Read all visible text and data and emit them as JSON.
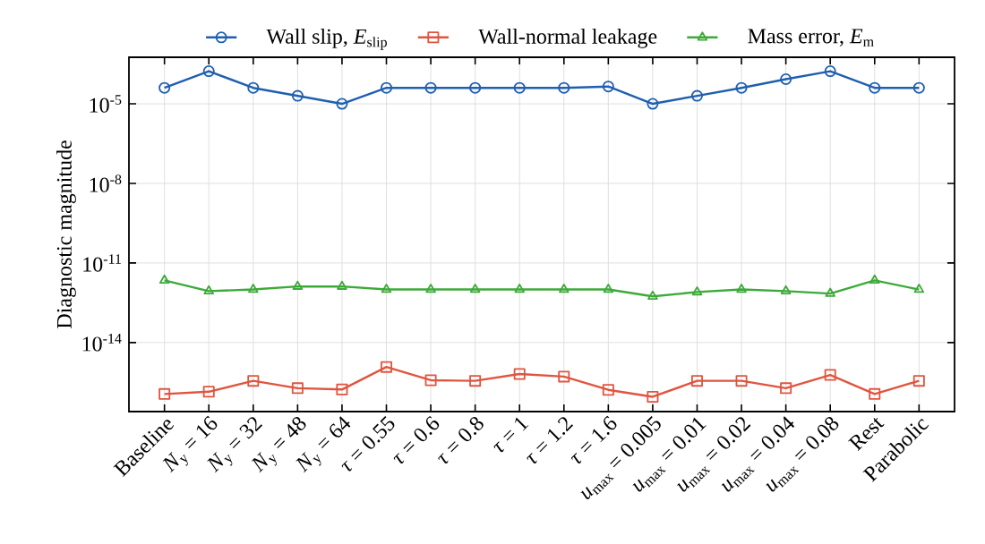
{
  "chart_data": {
    "type": "line",
    "ylabel": "Diagnostic magnitude",
    "categories": [
      "Baseline",
      "*N*$_{y}$ = 16",
      "*N*$_{y}$ = 32",
      "*N*$_{y}$ = 48",
      "*N*$_{y}$ = 64",
      "*τ* = 0.55",
      "*τ* = 0.6",
      "*τ* = 0.8",
      "*τ* = 1",
      "*τ* = 1.2",
      "*τ* = 1.6",
      "*u*$_{max}$ = 0.005",
      "*u*$_{max}$ = 0.01",
      "*u*$_{max}$ = 0.02",
      "*u*$_{max}$ = 0.04",
      "*u*$_{max}$ = 0.08",
      "Rest",
      "Parabolic"
    ],
    "series": [
      {
        "name": "Wall slip, *E*$_{slip}$",
        "color": "#1f5fb0",
        "marker": "circle",
        "values": [
          4e-05,
          0.00017,
          4e-05,
          2e-05,
          1e-05,
          4e-05,
          4e-05,
          4e-05,
          4e-05,
          4e-05,
          4.5e-05,
          1e-05,
          2e-05,
          4e-05,
          8.5e-05,
          0.00017,
          4e-05,
          4e-05
        ]
      },
      {
        "name": "Wall-normal leakage",
        "color": "#e0553f",
        "marker": "square",
        "values": [
          1.15e-16,
          1.4e-16,
          3.6e-16,
          1.9e-16,
          1.7e-16,
          1.2e-15,
          3.8e-16,
          3.6e-16,
          6.5e-16,
          5.2e-16,
          1.65e-16,
          9e-17,
          3.6e-16,
          3.6e-16,
          1.9e-16,
          6e-16,
          1.15e-16,
          3.6e-16
        ]
      },
      {
        "name": "Mass error, *E*$_{m}$",
        "color": "#3caa38",
        "marker": "triangle",
        "values": [
          2.2e-12,
          8.7e-13,
          1e-12,
          1.3e-12,
          1.3e-12,
          1e-12,
          1e-12,
          1e-12,
          1e-12,
          1e-12,
          1e-12,
          5.5e-13,
          8e-13,
          1e-12,
          8.7e-13,
          7e-13,
          2.2e-12,
          1e-12
        ]
      }
    ],
    "log": "y",
    "ylim": [
      2.5e-17,
      0.00057
    ],
    "yticks": [
      {
        "value": 1e-14,
        "label": "10$^{-14}$"
      },
      {
        "value": 1e-11,
        "label": "10$^{-11}$"
      },
      {
        "value": 1e-08,
        "label": "10$^{-8}$"
      },
      {
        "value": 1e-05,
        "label": "10$^{-5}$"
      }
    ],
    "grid": true,
    "legend": "top",
    "line_style": "solid"
  }
}
